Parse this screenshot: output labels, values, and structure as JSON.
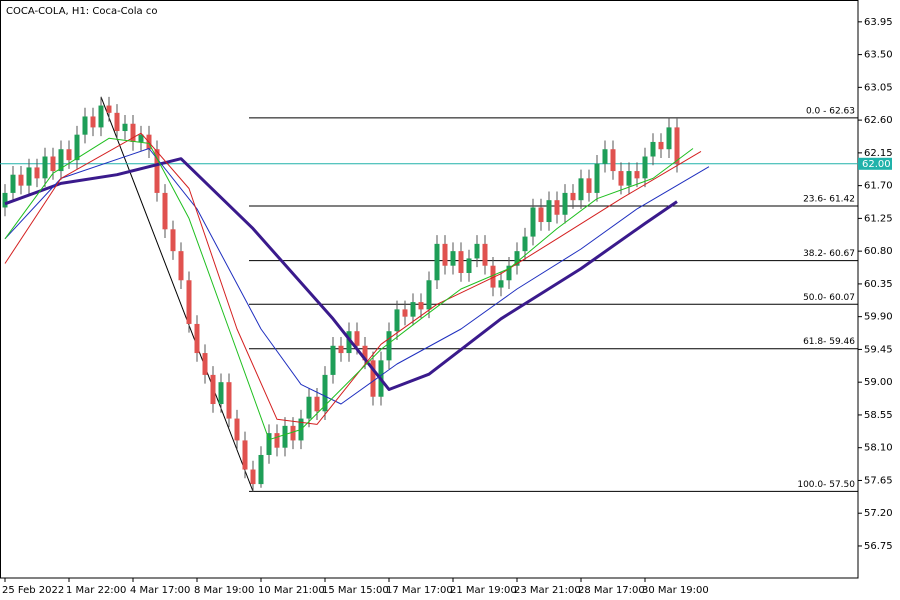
{
  "chart_data": {
    "type": "candlestick",
    "title": "COCA-COLA, H1:  Coca-Cola co",
    "open": [
      61.4,
      61.6,
      61.85,
      61.7,
      61.95,
      61.8,
      62.1,
      61.9,
      62.2,
      62.05,
      62.4,
      62.65,
      62.5,
      62.8,
      62.7,
      62.45,
      62.55,
      62.3,
      62.4,
      62.2,
      61.6,
      61.1,
      60.8,
      60.4,
      59.8,
      59.4,
      59.1,
      58.7,
      59.0,
      58.5,
      58.2,
      57.8,
      57.6,
      58.0,
      58.3,
      58.1,
      58.4,
      58.2,
      58.5,
      58.8,
      58.6,
      59.1,
      59.5,
      59.4,
      59.7,
      59.5,
      59.3,
      58.8,
      59.3,
      59.7,
      60.0,
      59.9,
      60.1,
      60.0,
      60.4,
      60.9,
      60.6,
      60.8,
      60.5,
      60.7,
      60.9,
      60.6,
      60.3,
      60.4,
      60.6,
      60.8,
      61.0,
      61.4,
      61.2,
      61.5,
      61.3,
      61.6,
      61.5,
      61.8,
      61.6,
      62.0,
      62.2,
      61.9,
      61.7,
      61.9,
      61.8,
      62.1,
      62.3,
      62.2,
      62.5
    ],
    "high": [
      61.72,
      61.97,
      61.97,
      62.07,
      62.07,
      62.22,
      62.22,
      62.32,
      62.32,
      62.52,
      62.77,
      62.77,
      62.92,
      62.92,
      62.82,
      62.67,
      62.67,
      62.52,
      62.52,
      62.32,
      61.72,
      61.22,
      60.92,
      60.52,
      59.92,
      59.52,
      59.22,
      59.12,
      59.12,
      58.62,
      58.32,
      57.92,
      58.12,
      58.42,
      58.42,
      58.52,
      58.52,
      58.62,
      58.92,
      58.92,
      59.22,
      59.62,
      59.62,
      59.82,
      59.82,
      59.62,
      59.42,
      59.42,
      59.82,
      60.12,
      60.12,
      60.22,
      60.22,
      60.52,
      61.02,
      61.02,
      60.92,
      60.92,
      60.82,
      61.02,
      61.02,
      60.72,
      60.52,
      60.72,
      60.92,
      61.12,
      61.52,
      61.52,
      61.62,
      61.62,
      61.72,
      61.72,
      61.92,
      61.92,
      62.12,
      62.32,
      62.32,
      62.02,
      62.02,
      62.02,
      62.22,
      62.42,
      62.42,
      62.63,
      62.62
    ],
    "low": [
      61.28,
      61.48,
      61.58,
      61.58,
      61.68,
      61.68,
      61.78,
      61.78,
      61.93,
      61.93,
      62.28,
      62.38,
      62.38,
      62.58,
      62.33,
      62.33,
      62.18,
      62.18,
      62.08,
      61.48,
      60.98,
      60.68,
      60.28,
      59.68,
      59.28,
      58.98,
      58.58,
      58.58,
      58.38,
      58.08,
      57.68,
      57.5,
      57.55,
      57.88,
      57.98,
      57.98,
      58.08,
      58.08,
      58.38,
      58.48,
      58.48,
      58.98,
      59.28,
      59.28,
      59.38,
      59.18,
      58.68,
      58.68,
      59.18,
      59.58,
      59.78,
      59.78,
      59.88,
      59.88,
      60.28,
      60.48,
      60.48,
      60.38,
      60.38,
      60.58,
      60.48,
      60.18,
      60.18,
      60.28,
      60.48,
      60.68,
      60.88,
      61.08,
      61.08,
      61.18,
      61.18,
      61.38,
      61.38,
      61.48,
      61.48,
      61.88,
      61.78,
      61.58,
      61.58,
      61.68,
      61.68,
      61.98,
      62.08,
      62.08,
      61.88
    ],
    "close": [
      61.6,
      61.85,
      61.7,
      61.95,
      61.8,
      62.1,
      61.9,
      62.2,
      62.05,
      62.4,
      62.65,
      62.5,
      62.8,
      62.7,
      62.45,
      62.55,
      62.3,
      62.4,
      62.2,
      61.6,
      61.1,
      60.8,
      60.4,
      59.8,
      59.4,
      59.1,
      58.7,
      59.0,
      58.5,
      58.2,
      57.8,
      57.6,
      58.0,
      58.3,
      58.1,
      58.4,
      58.2,
      58.5,
      58.8,
      58.6,
      59.1,
      59.5,
      59.4,
      59.7,
      59.5,
      59.3,
      58.8,
      59.3,
      59.7,
      60.0,
      59.9,
      60.1,
      60.0,
      60.4,
      60.9,
      60.6,
      60.8,
      60.5,
      60.7,
      60.9,
      60.6,
      60.3,
      60.4,
      60.6,
      60.8,
      61.0,
      61.4,
      61.2,
      61.5,
      61.3,
      61.6,
      61.5,
      61.8,
      61.6,
      62.0,
      62.2,
      61.9,
      61.7,
      61.9,
      61.8,
      62.1,
      62.3,
      62.2,
      62.5,
      62.0
    ],
    "up_color": "#1e9e57",
    "down_color": "#e0524f",
    "series": [
      {
        "color": "#3a1a8c",
        "width": 3,
        "x": [
          0,
          7,
          14,
          22,
          31,
          41,
          48,
          53,
          62,
          72,
          80,
          84
        ],
        "values": [
          61.45,
          61.73,
          61.85,
          62.07,
          61.11,
          59.87,
          58.9,
          59.11,
          59.87,
          60.56,
          61.18,
          61.48
        ]
      },
      {
        "color": "#1f2fbf",
        "width": 1,
        "x": [
          0,
          7,
          18,
          24,
          32,
          37,
          42,
          49,
          57,
          64,
          72,
          79,
          88
        ],
        "values": [
          60.97,
          61.8,
          62.21,
          61.38,
          59.73,
          58.97,
          58.7,
          59.25,
          59.73,
          60.28,
          60.83,
          61.38,
          61.96
        ]
      },
      {
        "color": "#d42020",
        "width": 1,
        "x": [
          0,
          7,
          17,
          23,
          29,
          34,
          39,
          47,
          54,
          62,
          69,
          77,
          87
        ],
        "values": [
          60.63,
          61.8,
          62.42,
          61.66,
          59.73,
          58.49,
          58.42,
          59.52,
          60.07,
          60.49,
          60.97,
          61.52,
          62.17
        ]
      },
      {
        "color": "#1fbf1f",
        "width": 1,
        "x": [
          0,
          6,
          13,
          18,
          23,
          28,
          33,
          37,
          42,
          47,
          52,
          57,
          63,
          69,
          74,
          81,
          86
        ],
        "values": [
          60.97,
          61.87,
          62.35,
          62.28,
          61.25,
          59.73,
          58.21,
          58.35,
          58.9,
          59.45,
          59.87,
          60.28,
          60.56,
          61.11,
          61.52,
          61.8,
          62.21
        ]
      }
    ],
    "fib_levels": [
      {
        "value": 62.63,
        "label": "0.0 - 62.63"
      },
      {
        "value": 61.42,
        "label": "23.6- 61.42"
      },
      {
        "value": 60.67,
        "label": "38.2- 60.67"
      },
      {
        "value": 60.07,
        "label": "50.0- 60.07"
      },
      {
        "value": 59.46,
        "label": "61.8- 59.46"
      },
      {
        "value": 57.5,
        "label": "100.0- 57.50"
      }
    ],
    "last_price": {
      "value": 62,
      "label": "62.00"
    },
    "last_price_color": "#20b2aa",
    "xlim": [
      -0.625,
      106.625
    ],
    "xticks": [
      {
        "value": 0,
        "label": "25 Feb 2022"
      },
      {
        "value": 8,
        "label": "1 Mar 22:00"
      },
      {
        "value": 16,
        "label": "4 Mar 17:00"
      },
      {
        "value": 24,
        "label": "8 Mar 19:00"
      },
      {
        "value": 32,
        "label": "10 Mar 21:00"
      },
      {
        "value": 40,
        "label": "15 Mar 15:00"
      },
      {
        "value": 48,
        "label": "17 Mar 17:00"
      },
      {
        "value": 56,
        "label": "21 Mar 19:00"
      },
      {
        "value": 64,
        "label": "23 Mar 21:00"
      },
      {
        "value": 72,
        "label": "28 Mar 17:00"
      },
      {
        "value": 80,
        "label": "30 Mar 19:00"
      }
    ],
    "ylim": [
      56.31,
      64.25
    ],
    "yticks": [
      56.75,
      {
        "value": 57.2,
        "label": "57.20"
      },
      57.65,
      {
        "value": 58.1,
        "label": "58.10"
      },
      58.55,
      {
        "value": 59,
        "label": "59.00"
      },
      59.45,
      {
        "value": 59.9,
        "label": "59.90"
      },
      60.35,
      {
        "value": 60.8,
        "label": "60.80"
      },
      61.25,
      {
        "value": 61.7,
        "label": "61.70"
      },
      62.15,
      {
        "value": 62.6,
        "label": "62.60"
      },
      63.05,
      {
        "value": 63.5,
        "label": "63.50"
      },
      63.95
    ]
  }
}
